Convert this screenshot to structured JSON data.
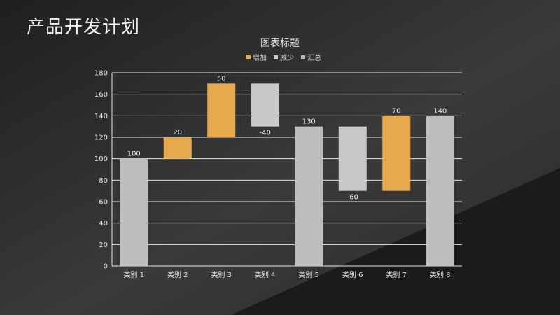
{
  "slide": {
    "title": "产品开发计划"
  },
  "colors": {
    "increase": "#E8A94E",
    "decrease": "#C8C8C8",
    "total": "#BDBDBD",
    "grid": "#E6E6E6",
    "axis_text": "#E6E6E6"
  },
  "chart_data": {
    "type": "bar",
    "subtype": "waterfall",
    "title": "图表标题",
    "legend": [
      "增加",
      "减少",
      "汇总"
    ],
    "legend_position": "top",
    "categories": [
      "类别 1",
      "类别 2",
      "类别 3",
      "类别 4",
      "类别 5",
      "类别 6",
      "类别 7",
      "类别 8"
    ],
    "values": [
      100,
      20,
      50,
      -40,
      130,
      -60,
      70,
      140
    ],
    "kinds": [
      "total",
      "increase",
      "increase",
      "decrease",
      "total",
      "decrease",
      "increase",
      "total"
    ],
    "value_labels": [
      "100",
      "20",
      "50",
      "-40",
      "130",
      "-60",
      "70",
      "140"
    ],
    "ylim": [
      0,
      180
    ],
    "yticks": [
      0,
      20,
      40,
      60,
      80,
      100,
      120,
      140,
      160,
      180
    ],
    "grid": true
  }
}
